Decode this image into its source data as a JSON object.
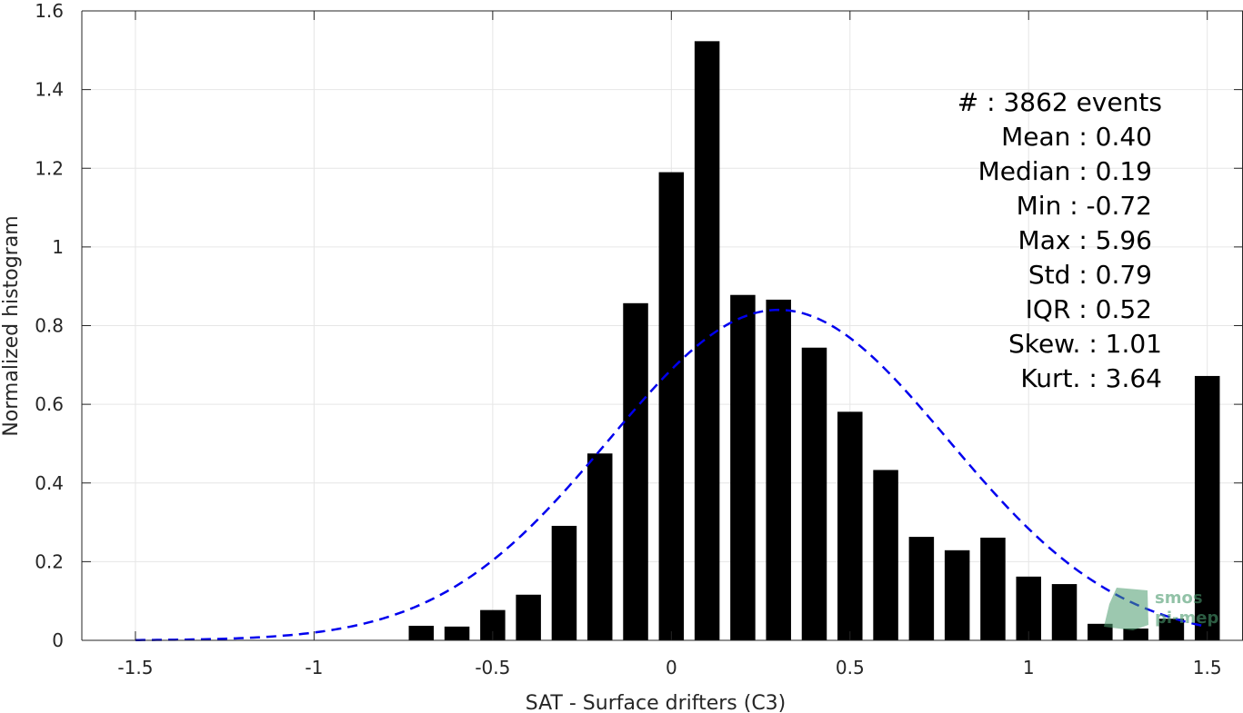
{
  "chart_data": {
    "type": "bar",
    "xlabel": "SAT - Surface drifters (C3)",
    "ylabel": "Normalized histogram",
    "xlim": [
      -1.65,
      1.6
    ],
    "ylim": [
      0,
      1.6
    ],
    "xticks": [
      -1.5,
      -1,
      -0.5,
      0,
      0.5,
      1,
      1.5
    ],
    "xtick_labels": [
      "-1.5",
      "-1",
      "-0.5",
      "0",
      "0.5",
      "1",
      "1.5"
    ],
    "yticks": [
      0,
      0.2,
      0.4,
      0.6,
      0.8,
      1,
      1.2,
      1.4,
      1.6
    ],
    "ytick_labels": [
      "0",
      "0.2",
      "0.4",
      "0.6",
      "0.8",
      "1",
      "1.2",
      "1.4",
      "1.6"
    ],
    "grid": true,
    "bin_width": 0.1,
    "bar_width": 0.07,
    "bar_color": "#000000",
    "bins": [
      {
        "x": -0.7,
        "value": 0.037
      },
      {
        "x": -0.6,
        "value": 0.035
      },
      {
        "x": -0.5,
        "value": 0.077
      },
      {
        "x": -0.4,
        "value": 0.116
      },
      {
        "x": -0.3,
        "value": 0.291
      },
      {
        "x": -0.2,
        "value": 0.475
      },
      {
        "x": -0.1,
        "value": 0.857
      },
      {
        "x": 0.0,
        "value": 1.19
      },
      {
        "x": 0.1,
        "value": 1.523
      },
      {
        "x": 0.2,
        "value": 0.878
      },
      {
        "x": 0.3,
        "value": 0.866
      },
      {
        "x": 0.4,
        "value": 0.744
      },
      {
        "x": 0.5,
        "value": 0.581
      },
      {
        "x": 0.6,
        "value": 0.433
      },
      {
        "x": 0.7,
        "value": 0.263
      },
      {
        "x": 0.8,
        "value": 0.229
      },
      {
        "x": 0.9,
        "value": 0.261
      },
      {
        "x": 1.0,
        "value": 0.162
      },
      {
        "x": 1.1,
        "value": 0.143
      },
      {
        "x": 1.2,
        "value": 0.042
      },
      {
        "x": 1.3,
        "value": 0.03
      },
      {
        "x": 1.4,
        "value": 0.055
      },
      {
        "x": 1.5,
        "value": 0.672
      }
    ],
    "fit_curve": {
      "style": "dashed",
      "color": "#0000ee",
      "mean": 0.3,
      "std": 0.475,
      "peak": 0.84,
      "x_range": [
        -1.5,
        1.5
      ]
    },
    "stats": [
      {
        "label": "#  : 3862 events",
        "anchor": "right-outer"
      },
      {
        "label": "Mean : 0.40",
        "anchor": "right-inner"
      },
      {
        "label": "Median : 0.19",
        "anchor": "right-inner"
      },
      {
        "label": "Min : -0.72",
        "anchor": "right-inner"
      },
      {
        "label": "Max : 5.96",
        "anchor": "right-inner"
      },
      {
        "label": "Std : 0.79",
        "anchor": "right-inner"
      },
      {
        "label": "IQR : 0.52",
        "anchor": "right-inner"
      },
      {
        "label": "Skew. : 1.01",
        "anchor": "right-outer"
      },
      {
        "label": "Kurt. : 3.64",
        "anchor": "right-outer"
      }
    ],
    "stats_placement": "top-right"
  },
  "logo": {
    "line1": "smos",
    "line2": "pi-mep",
    "color": "#4a9a6e"
  }
}
